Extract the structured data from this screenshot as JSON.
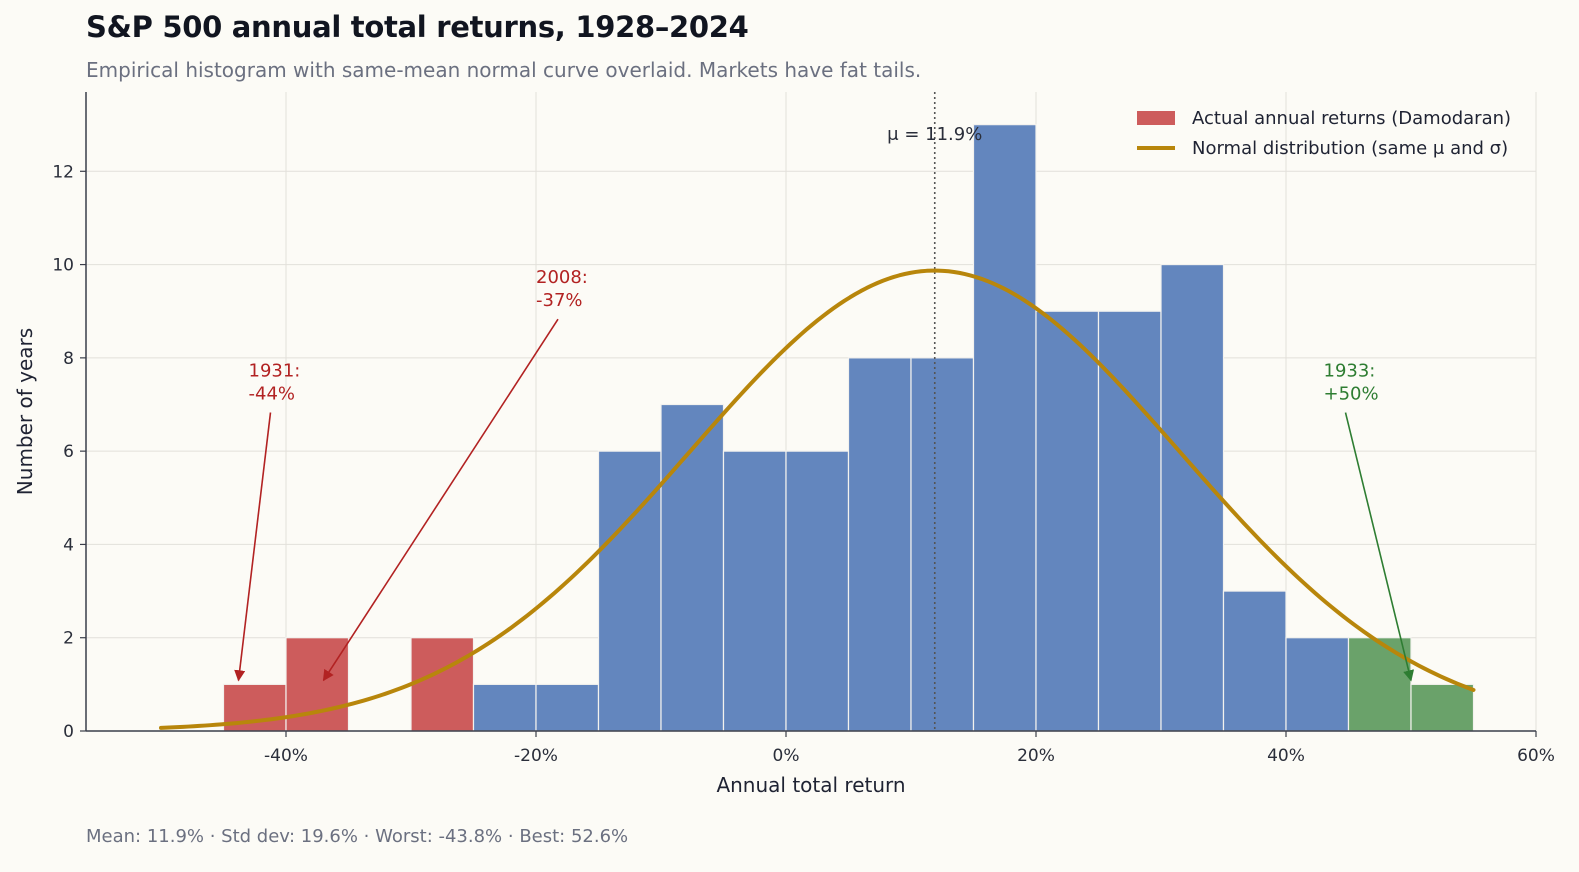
{
  "header": {
    "title": "S&P 500 annual total returns, 1928–2024",
    "subtitle": "Empirical histogram with same-mean normal curve overlaid. Markets have fat tails."
  },
  "footer": {
    "summary": "Mean: 11.9%  ·  Std dev: 19.6%  ·  Worst: -43.8%  ·  Best: 52.6%"
  },
  "chart_data": {
    "type": "bar",
    "title": "S&P 500 annual total returns, 1928–2024",
    "xlabel": "Annual total return",
    "ylabel": "Number of years",
    "xlim": [
      -0.56,
      0.6
    ],
    "ylim": [
      0,
      13.7
    ],
    "x_ticks": [
      -0.4,
      -0.2,
      0,
      0.2,
      0.4,
      0.6
    ],
    "x_tick_labels": [
      "-40%",
      "-20%",
      "0%",
      "20%",
      "40%",
      "60%"
    ],
    "y_ticks": [
      0,
      2,
      4,
      6,
      8,
      10,
      12
    ],
    "y_tick_labels": [
      "0",
      "2",
      "4",
      "6",
      "8",
      "10",
      "12"
    ],
    "grid": true,
    "legend_position": "top-right",
    "colors": {
      "crash": "#cd5c5c",
      "normal": "#6386be",
      "boom": "#6aa26a",
      "curve": "#b8860b",
      "crash_annotation": "#b22222",
      "boom_annotation": "#2e7d32"
    },
    "bin_width": 0.05,
    "bins": [
      {
        "start": -0.45,
        "count": 1,
        "group": "crash"
      },
      {
        "start": -0.4,
        "count": 2,
        "group": "crash"
      },
      {
        "start": -0.35,
        "count": 0,
        "group": "crash"
      },
      {
        "start": -0.3,
        "count": 2,
        "group": "crash"
      },
      {
        "start": -0.25,
        "count": 1,
        "group": "normal"
      },
      {
        "start": -0.2,
        "count": 1,
        "group": "normal"
      },
      {
        "start": -0.15,
        "count": 6,
        "group": "normal"
      },
      {
        "start": -0.1,
        "count": 7,
        "group": "normal"
      },
      {
        "start": -0.05,
        "count": 6,
        "group": "normal"
      },
      {
        "start": 0.0,
        "count": 6,
        "group": "normal"
      },
      {
        "start": 0.05,
        "count": 8,
        "group": "normal"
      },
      {
        "start": 0.1,
        "count": 8,
        "group": "normal"
      },
      {
        "start": 0.15,
        "count": 13,
        "group": "normal"
      },
      {
        "start": 0.2,
        "count": 9,
        "group": "normal"
      },
      {
        "start": 0.25,
        "count": 9,
        "group": "normal"
      },
      {
        "start": 0.3,
        "count": 10,
        "group": "normal"
      },
      {
        "start": 0.35,
        "count": 3,
        "group": "normal"
      },
      {
        "start": 0.4,
        "count": 2,
        "group": "normal"
      },
      {
        "start": 0.45,
        "count": 2,
        "group": "boom"
      },
      {
        "start": 0.5,
        "count": 1,
        "group": "boom"
      }
    ],
    "normal_curve": {
      "mean": 0.119,
      "std": 0.196,
      "n": 97,
      "x_range": [
        -0.5,
        0.55
      ]
    },
    "mean_line": {
      "x": 0.119,
      "label": "μ = 11.9%"
    },
    "legend": [
      {
        "label": "Actual annual returns (Damodaran)",
        "kind": "patch",
        "color": "#cd5c5c"
      },
      {
        "label": "Normal distribution (same μ and σ)",
        "kind": "line",
        "color": "#b8860b"
      }
    ],
    "annotations": [
      {
        "lines": [
          "1931:",
          "-44%"
        ],
        "point": [
          -0.438,
          1
        ],
        "text_at": [
          -0.43,
          7.6
        ],
        "color": "#b22222"
      },
      {
        "lines": [
          "2008:",
          "-37%"
        ],
        "point": [
          -0.37,
          1
        ],
        "text_at": [
          -0.2,
          9.6
        ],
        "color": "#b22222"
      },
      {
        "lines": [
          "1933:",
          "+50%"
        ],
        "point": [
          0.5,
          1
        ],
        "text_at": [
          0.43,
          7.6
        ],
        "color": "#2e7d32"
      }
    ]
  }
}
